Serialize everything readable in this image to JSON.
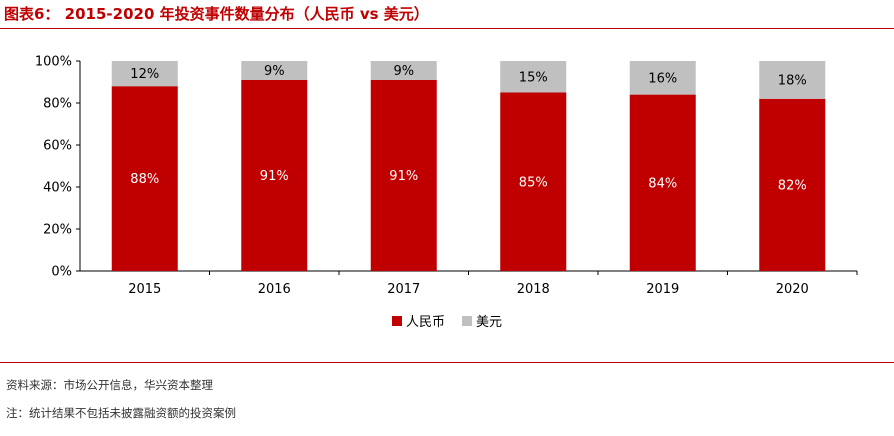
{
  "figure": {
    "title": "图表6： 2015-2020 年投资事件数量分布（人民币  vs  美元）",
    "source": "资料来源：市场公开信息，华兴资本整理",
    "note": "注：统计结果不包括未披露融资额的投资案例"
  },
  "chart_data": {
    "type": "bar",
    "stacked": true,
    "categories": [
      "2015",
      "2016",
      "2017",
      "2018",
      "2019",
      "2020"
    ],
    "series": [
      {
        "name": "人民币",
        "values": [
          88,
          91,
          91,
          85,
          84,
          82
        ],
        "labels": [
          "88%",
          "91%",
          "91%",
          "85%",
          "84%",
          "82%"
        ],
        "color": "#c00000",
        "label_color": "#ffffff"
      },
      {
        "name": "美元",
        "values": [
          12,
          9,
          9,
          15,
          16,
          18
        ],
        "labels": [
          "12%",
          "9%",
          "9%",
          "15%",
          "16%",
          "18%"
        ],
        "color": "#c0c0c0",
        "label_color": "#000000"
      }
    ],
    "yticks": [
      "0%",
      "20%",
      "40%",
      "60%",
      "80%",
      "100%"
    ],
    "ylim": [
      0,
      100
    ],
    "grid": false,
    "legend_position": "bottom"
  }
}
